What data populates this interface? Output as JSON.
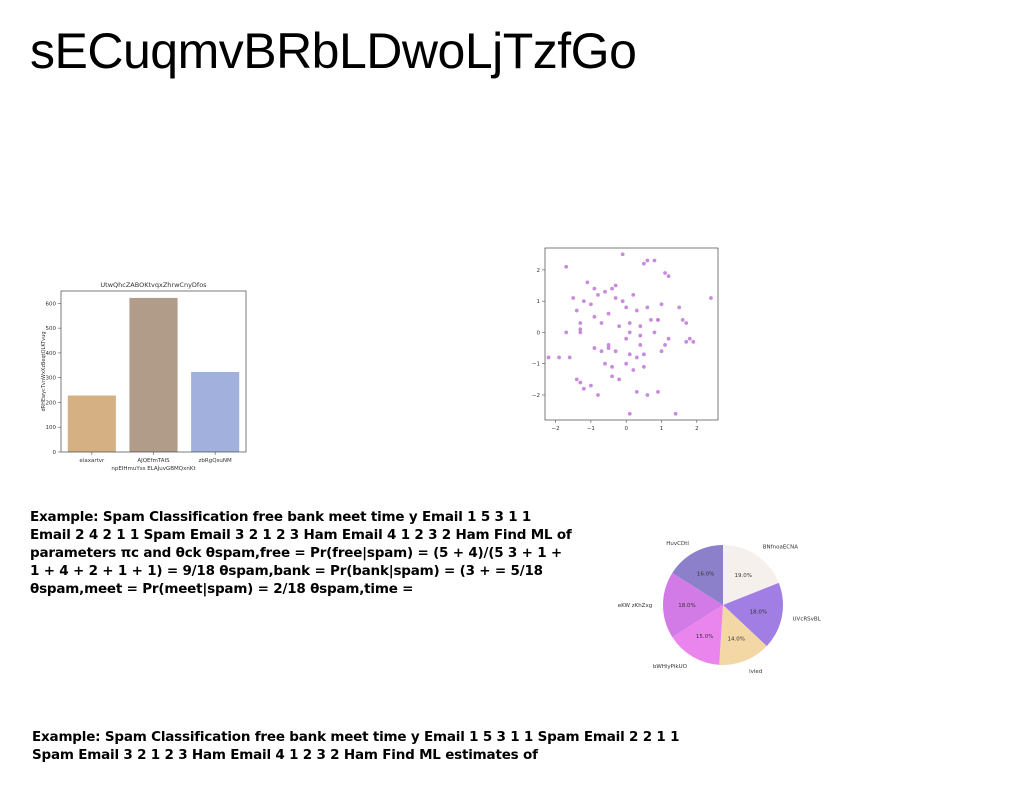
{
  "page": {
    "title": "sECuqmvBRbLDwoLjTzfGo",
    "paragraph_1": "Example: Spam Classification free bank meet time y Email 1 5 3 1 1 Email 2 4 2 1 1 Spam Email 3 2 1 2 3 Ham Email 4 1 2 3 2 Ham Find ML of parameters πc and θck θspam,free = Pr(free|spam) = (5 + 4)/(5 3 + 1 + 1 + 4 + 2 + 1 + 1) = 9/18 θspam,bank = Pr(bank|spam) = (3 + = 5/18 θspam,meet = Pr(meet|spam) = 2/18 θspam,time =",
    "paragraph_2": "Example: Spam Classification free bank meet time y Email 1 5 3 1 1 Spam Email 2 2 1 1 Spam Email 3 2 1 2 3 Ham Email 4 1 2 3 2 Ham Find ML estimates of"
  },
  "chart_data": [
    {
      "type": "bar",
      "title": "UtwQhcZABOKtvqxZhrwCnyDfos",
      "xlabel": "npEIHmuYss ELAJuvGBMQxnKt",
      "ylabel": "dRHEwycTvnWxXzBeqtQLKTvug",
      "categories": [
        "eiaxartvr",
        "AJQEfmTAIS",
        "zbRgQsuNM"
      ],
      "values": [
        228,
        622,
        323
      ],
      "colors": [
        "#d4b083",
        "#b09c88",
        "#a1b0dd"
      ],
      "ylim": [
        0,
        650
      ],
      "yticks": [
        0,
        100,
        200,
        300,
        400,
        500,
        600
      ]
    },
    {
      "type": "scatter",
      "color": "#c27fd8",
      "xlim": [
        -2.3,
        2.6
      ],
      "ylim": [
        -2.8,
        2.7
      ],
      "xticks": [
        -2,
        -1,
        0,
        1,
        2
      ],
      "yticks": [
        -2,
        -1,
        0,
        1,
        2
      ],
      "x": [
        -0.1,
        0.6,
        0.5,
        -1.7,
        -1.1,
        -0.3,
        0.8,
        1.1,
        1.2,
        -0.9,
        -0.8,
        -0.6,
        -0.4,
        -0.3,
        -0.1,
        0.2,
        0.6,
        1.0,
        -1.5,
        -1.2,
        -1.0,
        -0.5,
        0.0,
        0.3,
        0.7,
        0.9,
        1.5,
        1.7,
        2.4,
        -1.4,
        -1.3,
        -0.9,
        -0.7,
        -0.2,
        0.1,
        0.4,
        0.9,
        1.2,
        1.6,
        1.8,
        -1.9,
        -1.7,
        -1.3,
        -1.3,
        -0.5,
        0.0,
        0.1,
        0.4,
        0.8,
        1.0,
        1.7,
        1.9,
        -2.2,
        -1.6,
        -0.9,
        -0.7,
        -0.5,
        -0.3,
        0.1,
        0.3,
        0.5,
        1.1,
        -1.4,
        -1.2,
        -1.0,
        -0.6,
        -0.4,
        0.0,
        0.2,
        0.5,
        -1.3,
        -0.8,
        -0.4,
        -0.2,
        0.3,
        0.6,
        0.9,
        0.1,
        1.4,
        0.4
      ],
      "y": [
        2.5,
        2.3,
        2.2,
        2.1,
        1.6,
        1.5,
        2.3,
        1.9,
        1.8,
        1.4,
        1.2,
        1.3,
        1.4,
        1.1,
        1.0,
        1.2,
        0.8,
        0.9,
        1.1,
        1.0,
        0.9,
        0.6,
        0.8,
        0.7,
        0.4,
        0.4,
        0.8,
        0.3,
        1.1,
        0.7,
        0.3,
        0.5,
        0.3,
        0.2,
        0.3,
        0.2,
        0.4,
        -0.2,
        0.4,
        -0.2,
        -0.8,
        0.0,
        0.0,
        0.1,
        -0.4,
        -0.2,
        0.0,
        -0.1,
        0.0,
        -0.6,
        -0.3,
        -0.3,
        -0.8,
        -0.8,
        -0.5,
        -0.6,
        -0.5,
        -0.6,
        -0.7,
        -0.8,
        -0.7,
        -0.4,
        -1.5,
        -1.8,
        -1.7,
        -1.0,
        -1.1,
        -1.0,
        -1.2,
        -1.1,
        -1.6,
        -2.0,
        -1.4,
        -1.5,
        -1.9,
        -2.0,
        -1.9,
        -2.6,
        -2.6,
        -0.4
      ]
    },
    {
      "type": "pie",
      "labels": [
        "BNfnoaECNA",
        "UVcRSvBL",
        "lvled",
        "bWHiyPikUO",
        "eKW zKhZxg",
        "HuvCDtl"
      ],
      "values": [
        19.0,
        18.0,
        14.0,
        15.0,
        18.0,
        16.0
      ],
      "percent_labels": [
        "19.0%",
        "18.0%",
        "14.0%",
        "15.0%",
        "18.0%",
        "16.0%"
      ],
      "colors": [
        "#f6f0ec",
        "#a07ee3",
        "#f3d8a6",
        "#ea85ee",
        "#d27ae6",
        "#8b80c9"
      ]
    }
  ]
}
